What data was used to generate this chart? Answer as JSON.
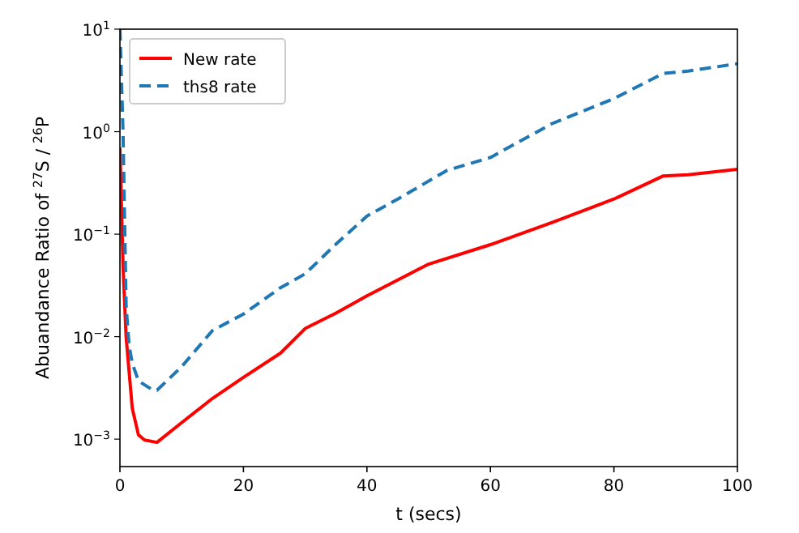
{
  "chart_data": {
    "type": "line",
    "xlabel": "t (secs)",
    "ylabel": "Abuandance Ratio of $^{27}$S / $^{26}$P",
    "log": "y",
    "xlim": [
      0,
      100
    ],
    "ylim": [
      0.00054,
      10
    ],
    "xticks": [
      0,
      20,
      40,
      60,
      80,
      100
    ],
    "yticks": [
      {
        "value": 0.001,
        "label": "10$^{−3}$"
      },
      {
        "value": 0.01,
        "label": "10$^{−2}$"
      },
      {
        "value": 0.1,
        "label": "10$^{−1}$"
      },
      {
        "value": 1,
        "label": "10$^{0}$"
      },
      {
        "value": 10,
        "label": "10$^{1}$"
      }
    ],
    "legend": "top left",
    "grid": false,
    "marker": "none",
    "series": [
      {
        "name": "New rate",
        "color": "#ff0000",
        "line_style": "solid",
        "x": [
          0,
          0.5,
          1,
          2,
          3,
          4,
          6,
          10,
          15,
          20,
          26,
          30,
          35,
          40,
          50,
          60,
          70,
          80,
          88,
          92,
          100
        ],
        "values": [
          0.7,
          0.05,
          0.01,
          0.002,
          0.0011,
          0.00098,
          0.00093,
          0.00145,
          0.0025,
          0.004,
          0.0069,
          0.012,
          0.017,
          0.025,
          0.051,
          0.079,
          0.13,
          0.22,
          0.37,
          0.38,
          0.43
        ]
      },
      {
        "name": "ths8 rate",
        "color": "#1f77b4",
        "line_style": "dashed",
        "x": [
          0,
          0.5,
          1,
          1.5,
          2,
          3,
          5,
          6,
          10,
          15,
          20,
          26,
          30,
          35,
          40,
          45,
          53,
          60,
          70,
          80,
          88,
          92,
          100
        ],
        "values": [
          10,
          1,
          0.02,
          0.008,
          0.0055,
          0.0037,
          0.0031,
          0.003,
          0.0051,
          0.0115,
          0.0166,
          0.03,
          0.041,
          0.08,
          0.15,
          0.22,
          0.42,
          0.56,
          1.2,
          2.1,
          3.7,
          3.9,
          4.6
        ]
      }
    ]
  }
}
